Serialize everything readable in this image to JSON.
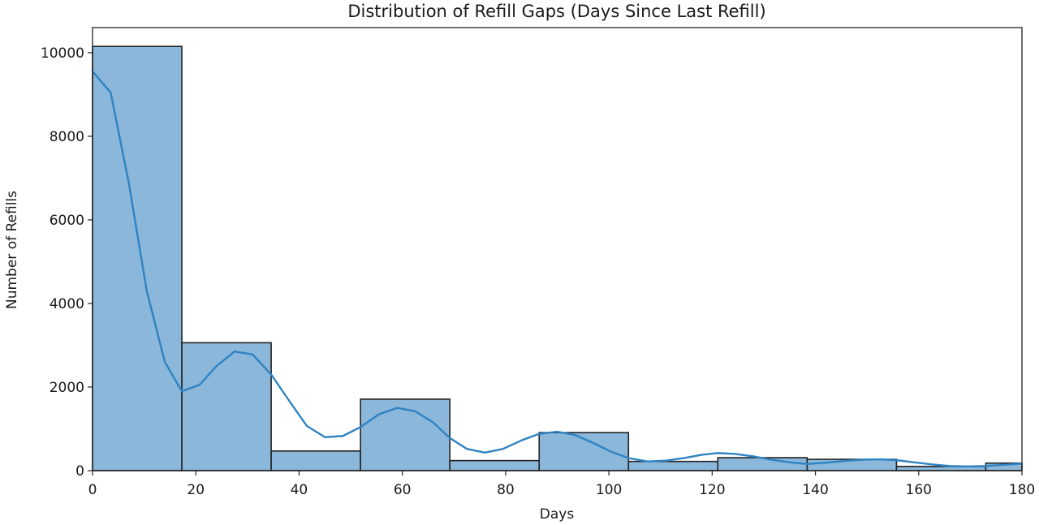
{
  "chart_data": {
    "type": "bar",
    "title": "Distribution of Refill Gaps (Days Since Last Refill)",
    "xlabel": "Days",
    "ylabel": "Number of Refills",
    "xlim": [
      0,
      180
    ],
    "ylim": [
      0,
      10600
    ],
    "xticks": [
      "0",
      "20",
      "40",
      "60",
      "80",
      "100",
      "120",
      "140",
      "160",
      "180"
    ],
    "yticks": [
      "0",
      "2000",
      "4000",
      "6000",
      "8000",
      "10000"
    ],
    "grid": false,
    "legend": "none",
    "bar_color": "#8ab7da",
    "line_color": "#2f83c3",
    "bins": [
      {
        "start": 0,
        "end": 17.3,
        "count": 10150
      },
      {
        "start": 17.3,
        "end": 34.6,
        "count": 3060
      },
      {
        "start": 34.6,
        "end": 51.9,
        "count": 470
      },
      {
        "start": 51.9,
        "end": 69.2,
        "count": 1710
      },
      {
        "start": 69.2,
        "end": 86.5,
        "count": 240
      },
      {
        "start": 86.5,
        "end": 103.8,
        "count": 910
      },
      {
        "start": 103.8,
        "end": 121.1,
        "count": 220
      },
      {
        "start": 121.1,
        "end": 138.4,
        "count": 310
      },
      {
        "start": 138.4,
        "end": 155.7,
        "count": 270
      },
      {
        "start": 155.7,
        "end": 173,
        "count": 100
      },
      {
        "start": 173,
        "end": 180,
        "count": 180
      }
    ],
    "series": [
      {
        "type": "line",
        "x": [
          0,
          3.5,
          7,
          10.5,
          14,
          17.3,
          20.7,
          24,
          27.5,
          31,
          34.6,
          38.2,
          41.5,
          45,
          48.5,
          52,
          55.5,
          59,
          62.5,
          66,
          69.2,
          72.5,
          76,
          79.5,
          83,
          86.5,
          90,
          93.5,
          97,
          100.5,
          103.8,
          107.5,
          111,
          114.5,
          118,
          121.1,
          124.5,
          128,
          131.5,
          135,
          138.4,
          142,
          145.5,
          149,
          152.5,
          155.7,
          159,
          162.5,
          166,
          169.5,
          173,
          176.5,
          180
        ],
        "y": [
          9550,
          9050,
          6900,
          4300,
          2600,
          1900,
          2050,
          2500,
          2850,
          2780,
          2300,
          1650,
          1070,
          800,
          830,
          1050,
          1350,
          1500,
          1420,
          1150,
          780,
          520,
          430,
          520,
          720,
          880,
          930,
          850,
          660,
          450,
          300,
          220,
          240,
          300,
          380,
          420,
          400,
          340,
          260,
          200,
          160,
          190,
          230,
          260,
          270,
          250,
          200,
          150,
          110,
          100,
          110,
          140,
          170
        ]
      }
    ]
  }
}
